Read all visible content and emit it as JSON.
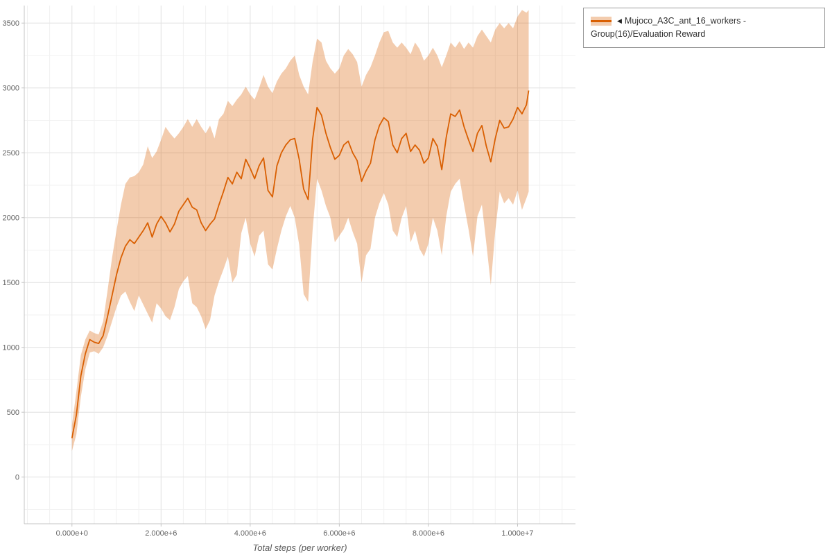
{
  "legend": {
    "marker": "◀",
    "label": "Mujoco_A3C_ant_16_workers - Group(16)/Evaluation Reward"
  },
  "colors": {
    "line": "#d95f02",
    "band_opacity": 0.32,
    "grid_major": "#e3e3e3",
    "grid_minor": "#f1f1f1",
    "axis": "#c4c4c4",
    "tick_text": "#636363",
    "legend_border": "#9a9a9a",
    "legend_text": "#333333"
  },
  "chart_data": {
    "type": "line",
    "title": "",
    "xlabel": "Total steps (per worker)",
    "ylabel": "",
    "grid": true,
    "legend_position": "top-right-outside",
    "xlim": [
      -1070000,
      11300000
    ],
    "ylim": [
      -360,
      3635
    ],
    "x_unit": 1000000,
    "x_ticks": [
      {
        "value": 0,
        "label": "0.000e+0"
      },
      {
        "value": 2000000,
        "label": "2.000e+6"
      },
      {
        "value": 4000000,
        "label": "4.000e+6"
      },
      {
        "value": 6000000,
        "label": "6.000e+6"
      },
      {
        "value": 8000000,
        "label": "8.000e+6"
      },
      {
        "value": 10000000,
        "label": "1.000e+7"
      }
    ],
    "y_ticks": [
      {
        "value": 0,
        "label": "0"
      },
      {
        "value": 500,
        "label": "500"
      },
      {
        "value": 1000,
        "label": "1000"
      },
      {
        "value": 1500,
        "label": "1500"
      },
      {
        "value": 2000,
        "label": "2000"
      },
      {
        "value": 2500,
        "label": "2500"
      },
      {
        "value": 3000,
        "label": "3000"
      },
      {
        "value": 3500,
        "label": "3500"
      }
    ],
    "series": [
      {
        "name": "Mujoco_A3C_ant_16_workers - Group(16)/Evaluation Reward",
        "x": [
          0,
          0.1,
          0.2,
          0.3,
          0.4,
          0.5,
          0.6,
          0.7,
          0.8,
          0.9,
          1,
          1.1,
          1.2,
          1.3,
          1.4,
          1.5,
          1.6,
          1.7,
          1.8,
          1.9,
          2,
          2.1,
          2.2,
          2.3,
          2.4,
          2.5,
          2.6,
          2.7,
          2.8,
          2.9,
          3,
          3.1,
          3.2,
          3.3,
          3.4,
          3.5,
          3.6,
          3.7,
          3.8,
          3.9,
          4,
          4.1,
          4.2,
          4.3,
          4.4,
          4.5,
          4.6,
          4.7,
          4.8,
          4.9,
          5,
          5.1,
          5.2,
          5.3,
          5.4,
          5.5,
          5.6,
          5.7,
          5.8,
          5.9,
          6,
          6.1,
          6.2,
          6.3,
          6.4,
          6.5,
          6.6,
          6.7,
          6.8,
          6.9,
          7,
          7.1,
          7.2,
          7.3,
          7.4,
          7.5,
          7.6,
          7.7,
          7.8,
          7.9,
          8,
          8.1,
          8.2,
          8.3,
          8.4,
          8.5,
          8.6,
          8.7,
          8.8,
          8.9,
          9,
          9.1,
          9.2,
          9.3,
          9.4,
          9.5,
          9.6,
          9.7,
          9.8,
          9.9,
          10,
          10.1,
          10.2,
          10.25
        ],
        "mean": [
          300,
          480,
          780,
          950,
          1060,
          1040,
          1030,
          1090,
          1240,
          1400,
          1560,
          1690,
          1780,
          1830,
          1800,
          1850,
          1900,
          1960,
          1850,
          1950,
          2010,
          1960,
          1890,
          1950,
          2050,
          2100,
          2150,
          2080,
          2060,
          1960,
          1900,
          1950,
          1990,
          2100,
          2200,
          2310,
          2260,
          2350,
          2300,
          2450,
          2380,
          2300,
          2400,
          2460,
          2210,
          2160,
          2400,
          2500,
          2560,
          2600,
          2610,
          2450,
          2220,
          2140,
          2600,
          2850,
          2790,
          2650,
          2540,
          2450,
          2480,
          2560,
          2590,
          2500,
          2440,
          2280,
          2360,
          2420,
          2600,
          2710,
          2770,
          2740,
          2560,
          2500,
          2610,
          2650,
          2510,
          2560,
          2520,
          2420,
          2460,
          2610,
          2550,
          2370,
          2620,
          2800,
          2780,
          2830,
          2700,
          2600,
          2510,
          2650,
          2710,
          2550,
          2430,
          2610,
          2750,
          2690,
          2700,
          2760,
          2850,
          2800,
          2870,
          2980
        ],
        "lower": [
          200,
          330,
          620,
          830,
          960,
          970,
          950,
          1000,
          1090,
          1200,
          1310,
          1400,
          1430,
          1350,
          1280,
          1400,
          1330,
          1260,
          1190,
          1340,
          1300,
          1240,
          1210,
          1310,
          1450,
          1510,
          1550,
          1340,
          1310,
          1240,
          1140,
          1210,
          1400,
          1510,
          1600,
          1700,
          1500,
          1560,
          1880,
          2000,
          1800,
          1700,
          1860,
          1900,
          1640,
          1600,
          1760,
          1900,
          2010,
          2090,
          2000,
          1790,
          1410,
          1350,
          1900,
          2300,
          2210,
          2090,
          2000,
          1810,
          1860,
          1910,
          2000,
          1890,
          1800,
          1500,
          1710,
          1760,
          2000,
          2110,
          2190,
          2100,
          1900,
          1850,
          2000,
          2090,
          1810,
          1900,
          1760,
          1700,
          1800,
          2000,
          1900,
          1710,
          2010,
          2200,
          2260,
          2300,
          2100,
          1910,
          1700,
          2010,
          2100,
          1800,
          1480,
          1900,
          2200,
          2110,
          2150,
          2100,
          2210,
          2060,
          2150,
          2200
        ],
        "upper": [
          400,
          660,
          940,
          1060,
          1130,
          1110,
          1100,
          1200,
          1440,
          1690,
          1900,
          2100,
          2260,
          2310,
          2320,
          2350,
          2410,
          2550,
          2460,
          2510,
          2600,
          2700,
          2650,
          2610,
          2650,
          2700,
          2760,
          2700,
          2760,
          2700,
          2650,
          2710,
          2610,
          2760,
          2800,
          2900,
          2860,
          2910,
          2950,
          3010,
          2950,
          2910,
          3000,
          3100,
          3010,
          2960,
          3050,
          3110,
          3150,
          3210,
          3250,
          3100,
          3010,
          2950,
          3200,
          3380,
          3350,
          3210,
          3150,
          3110,
          3150,
          3250,
          3300,
          3260,
          3200,
          3010,
          3100,
          3160,
          3250,
          3350,
          3430,
          3440,
          3350,
          3310,
          3350,
          3310,
          3260,
          3350,
          3300,
          3210,
          3250,
          3310,
          3250,
          3160,
          3250,
          3350,
          3310,
          3360,
          3300,
          3350,
          3310,
          3400,
          3450,
          3400,
          3350,
          3450,
          3500,
          3460,
          3500,
          3460,
          3550,
          3600,
          3580,
          3600
        ]
      }
    ]
  }
}
